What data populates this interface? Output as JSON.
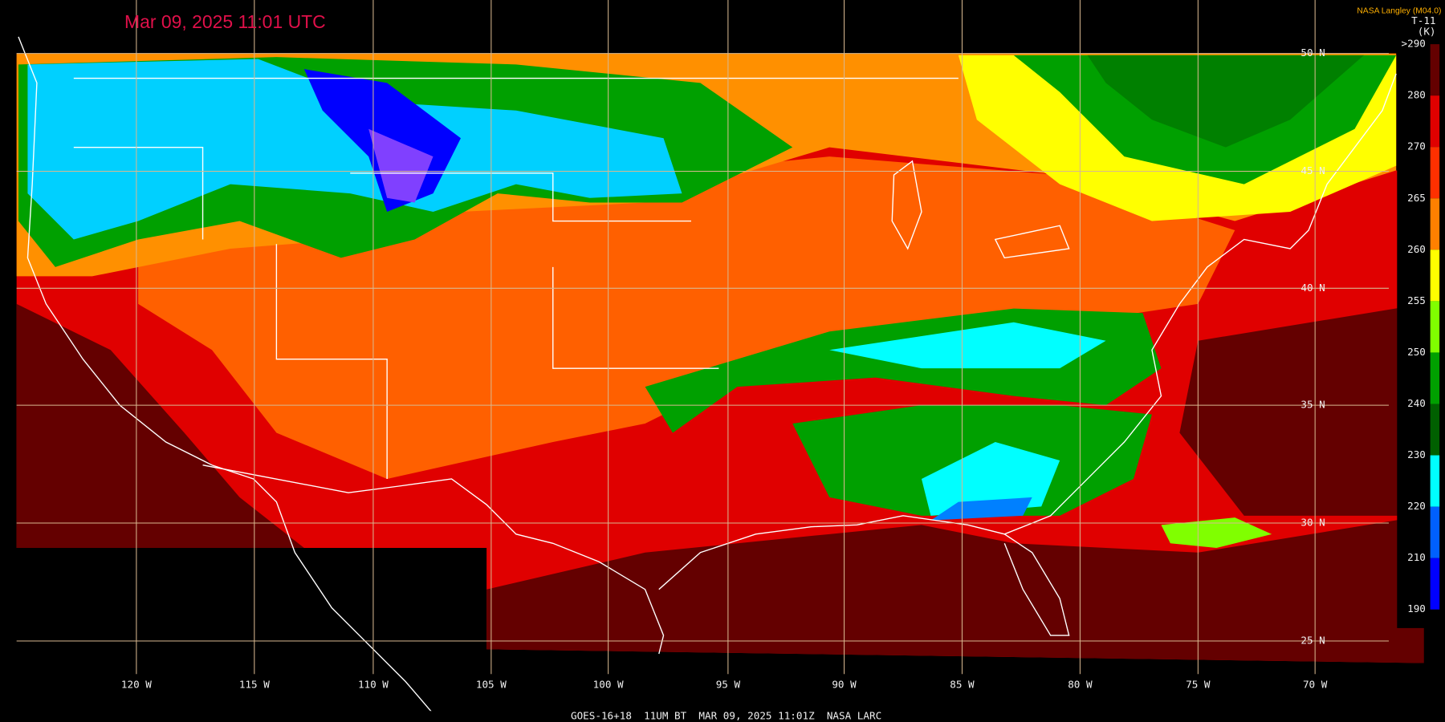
{
  "header": {
    "title": "Mar 09, 2025 11:01 UTC",
    "credit": "NASA Langley (M04.0)",
    "footer": "GOES-16+18  11UM BT  MAR 09, 2025 11:01Z  NASA LARC"
  },
  "colorbar": {
    "channel": "T-11",
    "unit": "(K)",
    "labels": [
      ">290",
      "280",
      "270",
      "265",
      "260",
      "255",
      "250",
      "240",
      "230",
      "220",
      "210",
      "190"
    ]
  },
  "grid": {
    "latitudes": [
      "50 N",
      "45 N",
      "40 N",
      "35 N",
      "30 N",
      "25 N"
    ],
    "longitudes": [
      "120 W",
      "115 W",
      "110 W",
      "105 W",
      "100 W",
      "95 W",
      "90 W",
      "85 W",
      "80 W",
      "75 W",
      "70 W"
    ]
  }
}
